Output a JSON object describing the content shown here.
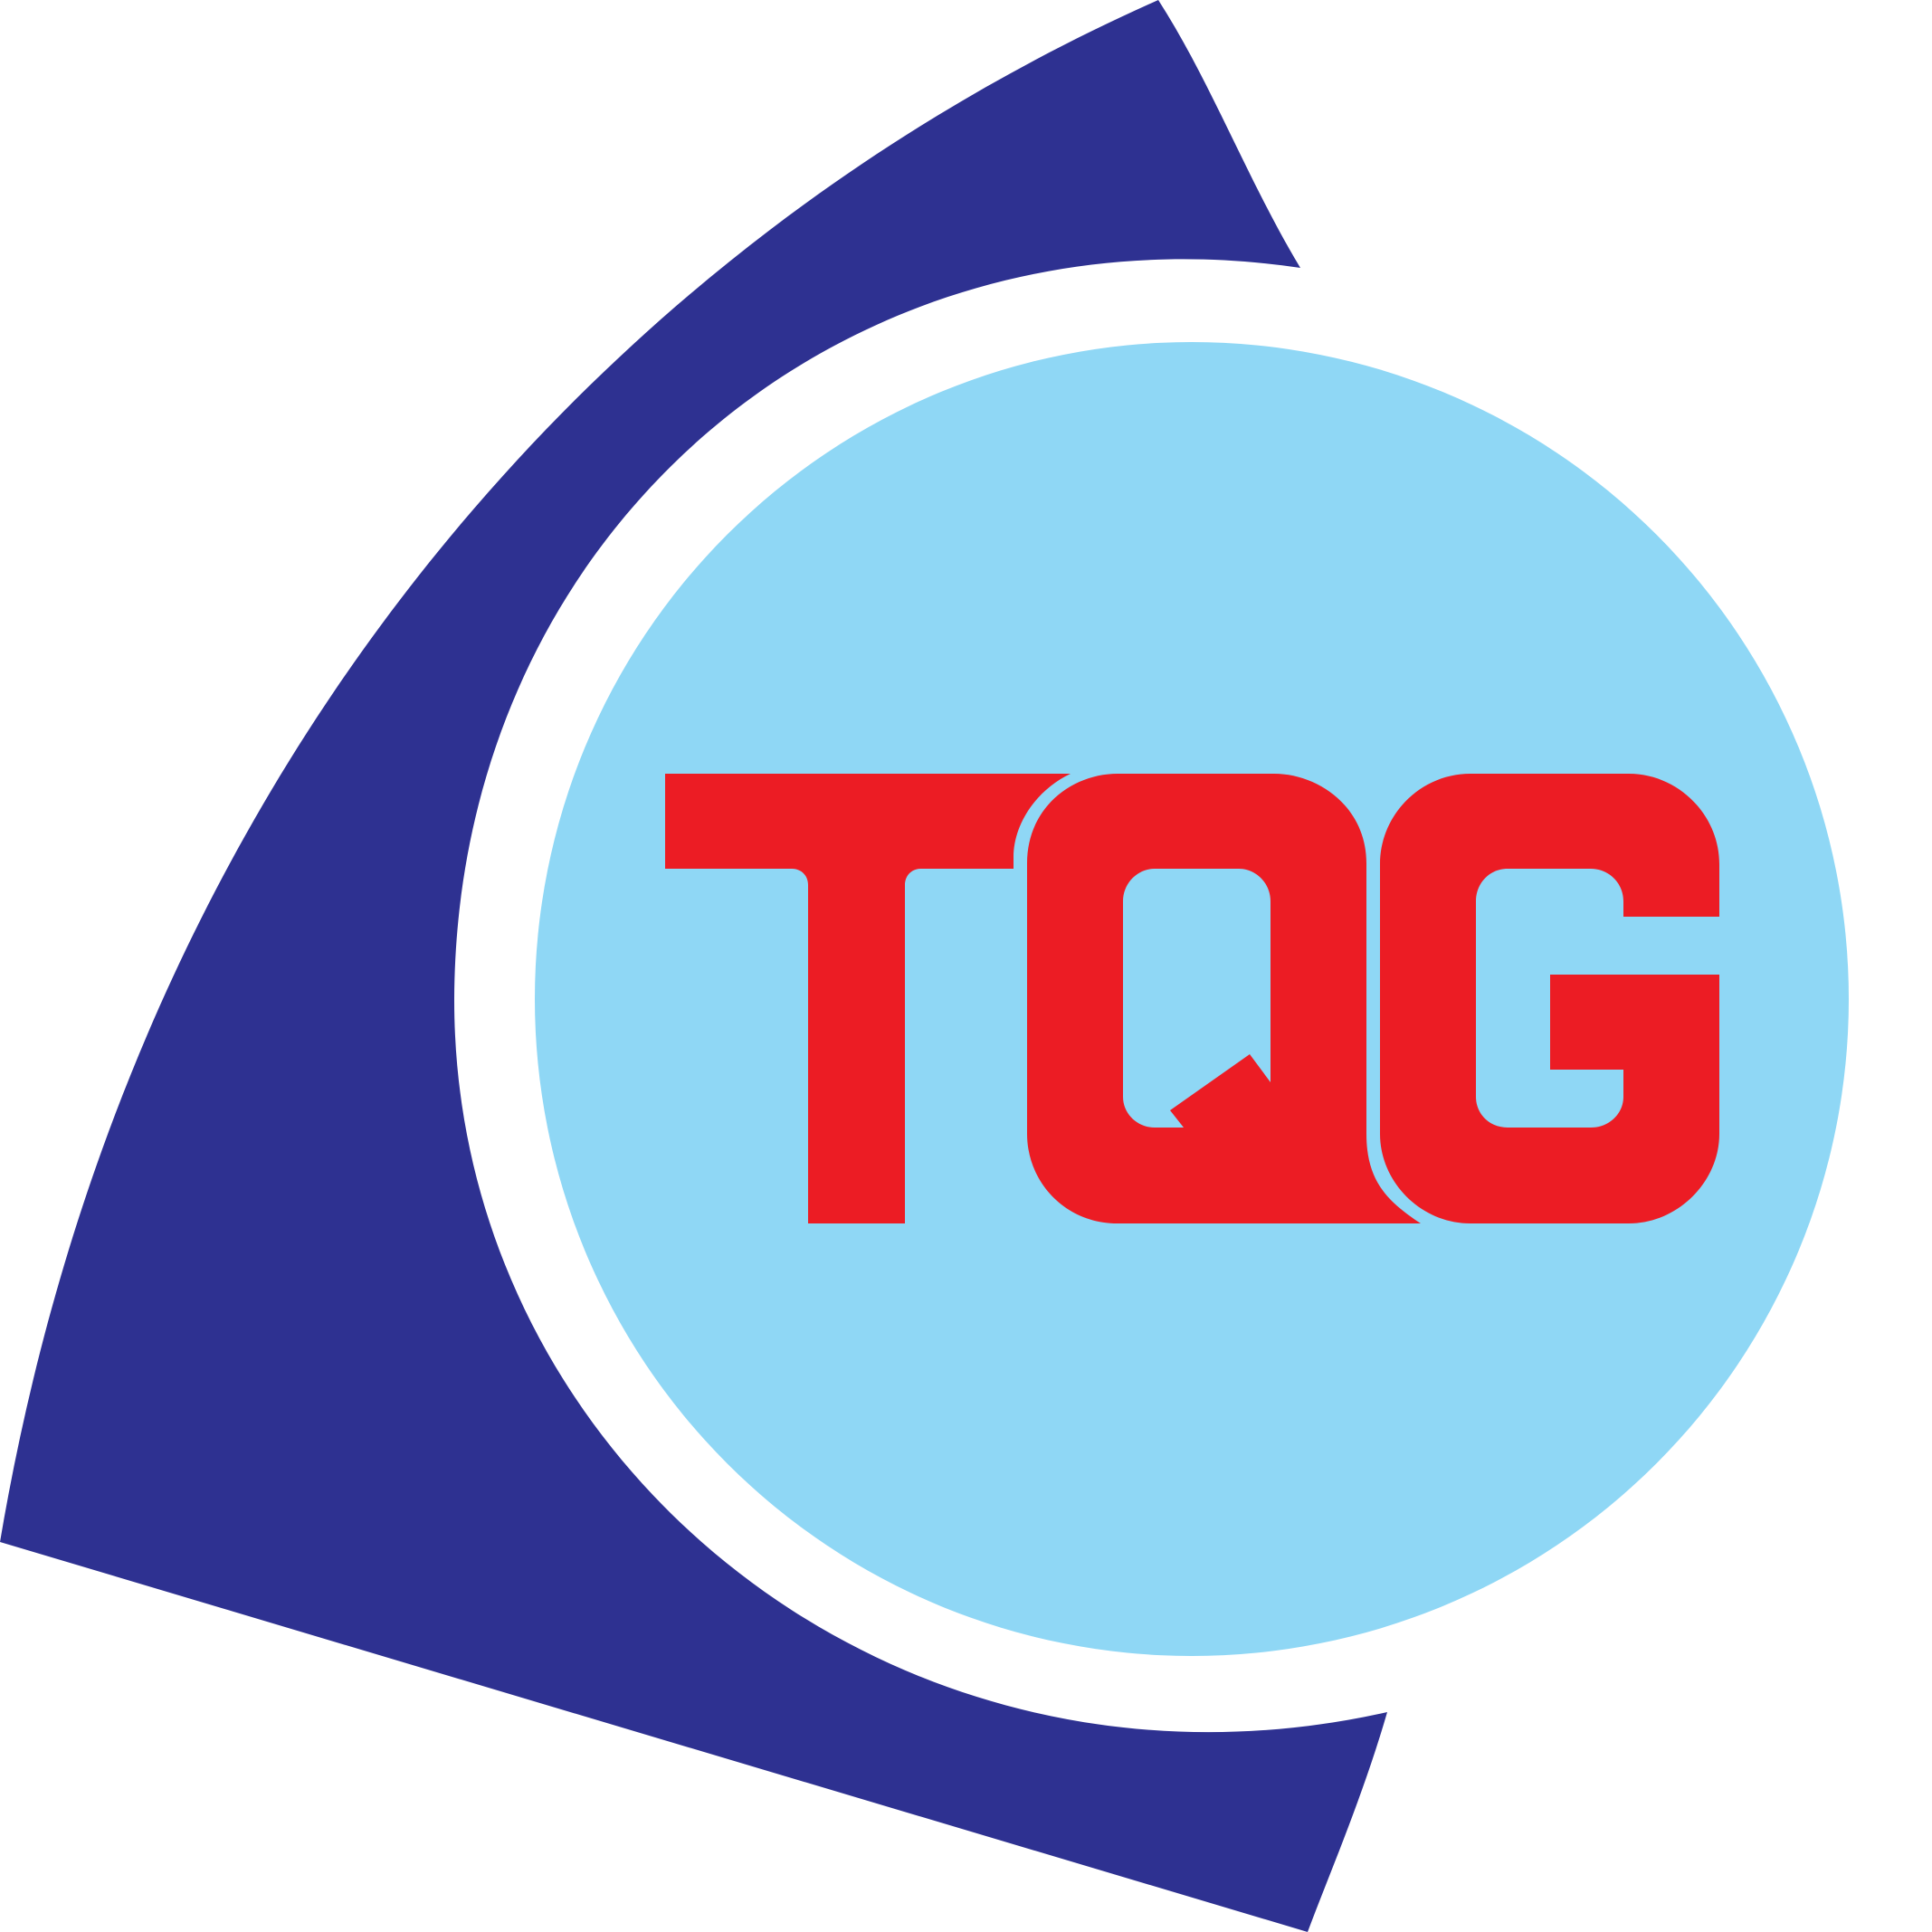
{
  "logo": {
    "wordmark": "TQG",
    "colors": {
      "background": "#ffffff",
      "sail": "#2e3191",
      "circle": "#8fd7f5",
      "letters": "#ec1c24"
    }
  }
}
